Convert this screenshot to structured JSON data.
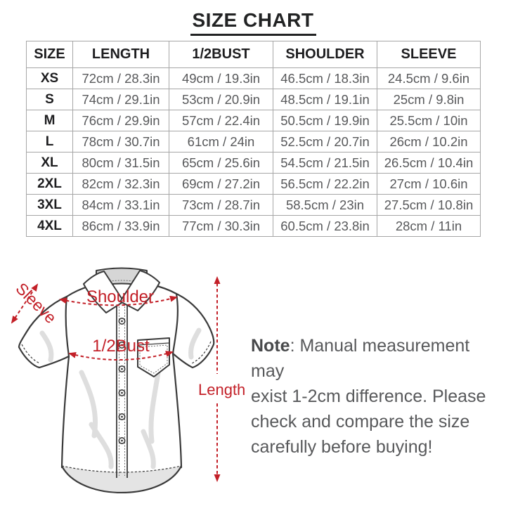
{
  "title": "SIZE CHART",
  "colors": {
    "accent_red": "#c32028",
    "heading_text": "#222324",
    "table_value_text": "#58595b",
    "table_border": "#a6a6a6",
    "shirt_outline": "#3a3a3a",
    "shirt_shading": "#e0e0e0",
    "background": "#ffffff"
  },
  "chart_data": {
    "type": "table",
    "title": "SIZE CHART",
    "columns": [
      "SIZE",
      "LENGTH",
      "1/2BUST",
      "SHOULDER",
      "SLEEVE"
    ],
    "rows": [
      [
        "XS",
        "72cm / 28.3in",
        "49cm / 19.3in",
        "46.5cm / 18.3in",
        "24.5cm / 9.6in"
      ],
      [
        "S",
        "74cm / 29.1in",
        "53cm / 20.9in",
        "48.5cm / 19.1in",
        "25cm / 9.8in"
      ],
      [
        "M",
        "76cm / 29.9in",
        "57cm / 22.4in",
        "50.5cm / 19.9in",
        "25.5cm / 10in"
      ],
      [
        "L",
        "78cm / 30.7in",
        "61cm / 24in",
        "52.5cm / 20.7in",
        "26cm / 10.2in"
      ],
      [
        "XL",
        "80cm / 31.5in",
        "65cm / 25.6in",
        "54.5cm / 21.5in",
        "26.5cm / 10.4in"
      ],
      [
        "2XL",
        "82cm / 32.3in",
        "69cm / 27.2in",
        "56.5cm / 22.2in",
        "27cm / 10.6in"
      ],
      [
        "3XL",
        "84cm / 33.1in",
        "73cm / 28.7in",
        "58.5cm / 23in",
        "27.5cm / 10.8in"
      ],
      [
        "4XL",
        "86cm / 33.9in",
        "77cm / 30.3in",
        "60.5cm / 23.8in",
        "28cm / 11in"
      ]
    ],
    "units": "cm / in",
    "row_label_column": "SIZE"
  },
  "diagram": {
    "labels": {
      "sleeve": "Sleeve",
      "shoulder": "Shoulder",
      "half_bust": "1/2Bust",
      "length": "Length"
    }
  },
  "note": {
    "bold": "Note",
    "line1_rest": ": Manual measurement may",
    "line2": "exist 1-2cm difference. Please",
    "line3": "check and compare the size",
    "line4": "carefully before buying!"
  }
}
